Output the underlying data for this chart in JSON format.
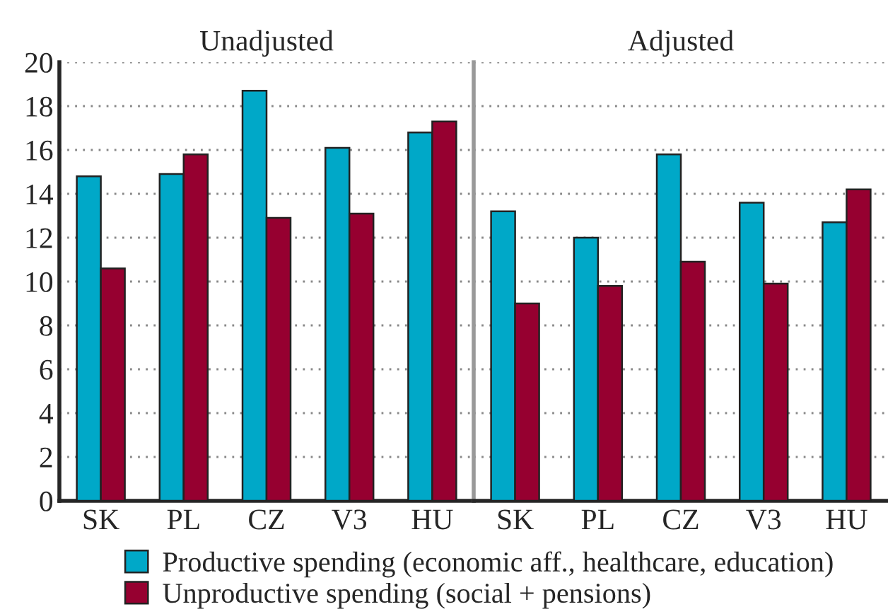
{
  "chart_data": [
    {
      "type": "bar",
      "title": "Unadjusted",
      "categories": [
        "SK",
        "PL",
        "CZ",
        "V3",
        "HU"
      ],
      "series": [
        {
          "name": "Productive spending (economic aff., healthcare, education)",
          "color": "#00a8c8",
          "values": [
            14.8,
            14.9,
            18.7,
            16.1,
            16.8
          ]
        },
        {
          "name": "Unproductive spending (social + pensions)",
          "color": "#960030",
          "values": [
            10.6,
            15.8,
            12.9,
            13.1,
            17.3
          ]
        }
      ],
      "ylim": [
        0,
        20
      ],
      "yticks": [
        0,
        2,
        4,
        6,
        8,
        10,
        12,
        14,
        16,
        18,
        20
      ],
      "grid": "y",
      "legend": "bottom"
    },
    {
      "type": "bar",
      "title": "Adjusted",
      "categories": [
        "SK",
        "PL",
        "CZ",
        "V3",
        "HU"
      ],
      "series": [
        {
          "color": "#00a8c8",
          "values": [
            13.2,
            12.0,
            15.8,
            13.6,
            12.7
          ]
        },
        {
          "color": "#960030",
          "values": [
            9.0,
            9.8,
            10.9,
            9.9,
            14.2
          ]
        }
      ],
      "ylim": [
        0,
        20
      ],
      "yticks": [
        0,
        2,
        4,
        6,
        8,
        10,
        12,
        14,
        16,
        18,
        20
      ],
      "grid": "y",
      "tick_labels": "x"
    }
  ]
}
